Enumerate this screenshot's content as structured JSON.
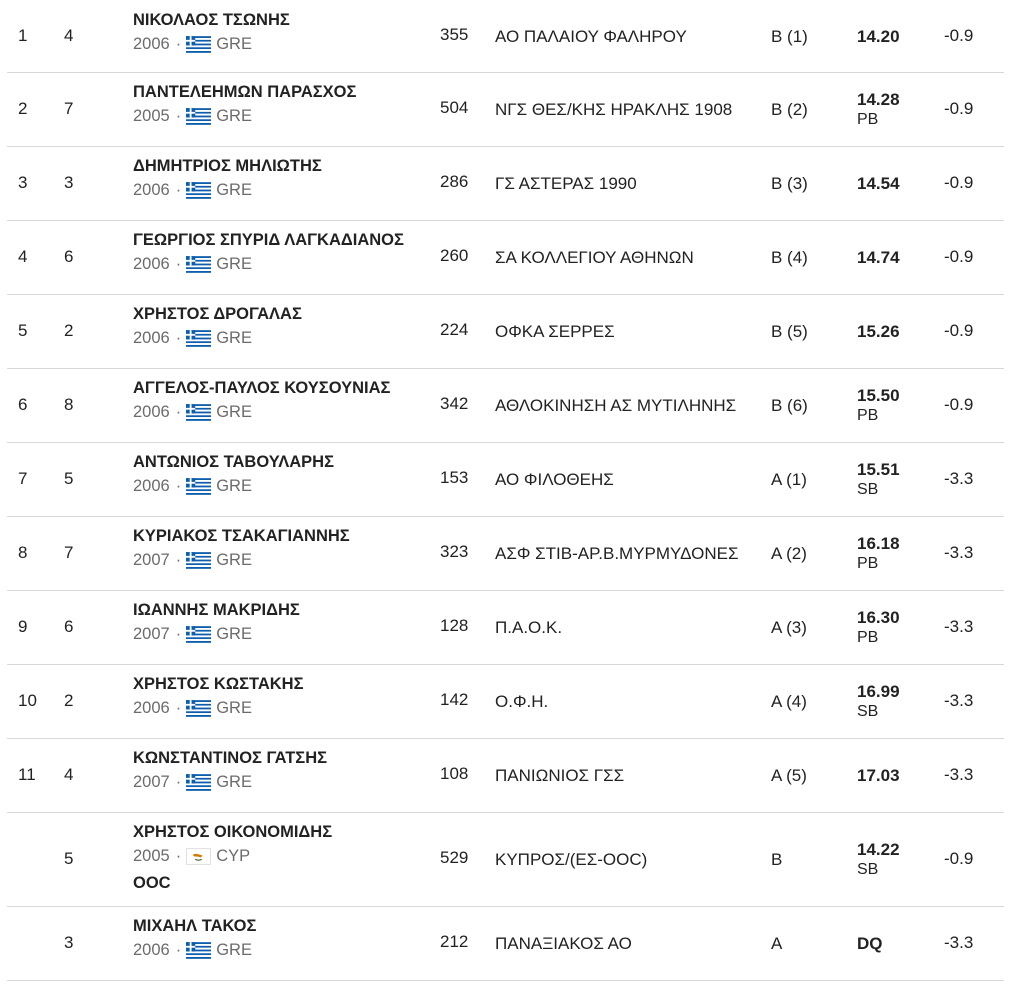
{
  "results": [
    {
      "rank": "1",
      "lane": "4",
      "name": "ΝΙΚΟΛΑΟΣ ΤΣΩΝΗΣ",
      "year": "2006",
      "country": "GRE",
      "flag": "greece-flag-icon",
      "bib": "355",
      "club": "ΑΟ ΠΑΛΑΙΟΥ ΦΑΛΗΡΟΥ",
      "heat": "Β (1)",
      "perf": "14.20",
      "record": "",
      "wind": "-0.9",
      "note": ""
    },
    {
      "rank": "2",
      "lane": "7",
      "name": "ΠΑΝΤΕΛΕΗΜΩΝ ΠΑΡΑΣΧΟΣ",
      "year": "2005",
      "country": "GRE",
      "flag": "greece-flag-icon",
      "bib": "504",
      "club": "ΝΓΣ ΘΕΣ/ΚΗΣ ΗΡΑΚΛΗΣ 1908",
      "heat": "Β (2)",
      "perf": "14.28",
      "record": "PB",
      "wind": "-0.9",
      "note": ""
    },
    {
      "rank": "3",
      "lane": "3",
      "name": "ΔΗΜΗΤΡΙΟΣ ΜΗΛΙΩΤΗΣ",
      "year": "2006",
      "country": "GRE",
      "flag": "greece-flag-icon",
      "bib": "286",
      "club": "ΓΣ ΑΣΤΕΡΑΣ 1990",
      "heat": "Β (3)",
      "perf": "14.54",
      "record": "",
      "wind": "-0.9",
      "note": ""
    },
    {
      "rank": "4",
      "lane": "6",
      "name": "ΓΕΩΡΓΙΟΣ ΣΠΥΡΙΔ ΛΑΓΚΑΔΙΑΝΟΣ",
      "year": "2006",
      "country": "GRE",
      "flag": "greece-flag-icon",
      "bib": "260",
      "club": "ΣΑ ΚΟΛΛΕΓΙΟΥ ΑΘΗΝΩΝ",
      "heat": "Β (4)",
      "perf": "14.74",
      "record": "",
      "wind": "-0.9",
      "note": ""
    },
    {
      "rank": "5",
      "lane": "2",
      "name": "ΧΡΗΣΤΟΣ ΔΡΟΓΑΛΑΣ",
      "year": "2006",
      "country": "GRE",
      "flag": "greece-flag-icon",
      "bib": "224",
      "club": "ΟΦΚΑ ΣΕΡΡΕΣ",
      "heat": "Β (5)",
      "perf": "15.26",
      "record": "",
      "wind": "-0.9",
      "note": ""
    },
    {
      "rank": "6",
      "lane": "8",
      "name": "ΑΓΓΕΛΟΣ-ΠΑΥΛΟΣ ΚΟΥΣΟΥΝΙΑΣ",
      "year": "2006",
      "country": "GRE",
      "flag": "greece-flag-icon",
      "bib": "342",
      "club": "ΑΘΛΟΚΙΝΗΣΗ ΑΣ ΜΥΤΙΛΗΝΗΣ",
      "heat": "Β (6)",
      "perf": "15.50",
      "record": "PB",
      "wind": "-0.9",
      "note": ""
    },
    {
      "rank": "7",
      "lane": "5",
      "name": "ΑΝΤΩΝΙΟΣ ΤΑΒΟΥΛΑΡΗΣ",
      "year": "2006",
      "country": "GRE",
      "flag": "greece-flag-icon",
      "bib": "153",
      "club": "ΑΟ ΦΙΛΟΘΕΗΣ",
      "heat": "Α (1)",
      "perf": "15.51",
      "record": "SB",
      "wind": "-3.3",
      "note": ""
    },
    {
      "rank": "8",
      "lane": "7",
      "name": "ΚΥΡΙΑΚΟΣ ΤΣΑΚΑΓΙΑΝΝΗΣ",
      "year": "2007",
      "country": "GRE",
      "flag": "greece-flag-icon",
      "bib": "323",
      "club": "ΑΣΦ ΣΤΙΒ-ΑΡ.Β.ΜΥΡΜΥΔΟΝΕΣ",
      "heat": "Α (2)",
      "perf": "16.18",
      "record": "PB",
      "wind": "-3.3",
      "note": ""
    },
    {
      "rank": "9",
      "lane": "6",
      "name": "ΙΩΑΝΝΗΣ ΜΑΚΡΙΔΗΣ",
      "year": "2007",
      "country": "GRE",
      "flag": "greece-flag-icon",
      "bib": "128",
      "club": "Π.Α.Ο.Κ.",
      "heat": "Α (3)",
      "perf": "16.30",
      "record": "PB",
      "wind": "-3.3",
      "note": ""
    },
    {
      "rank": "10",
      "lane": "2",
      "name": "ΧΡΗΣΤΟΣ ΚΩΣΤΑΚΗΣ",
      "year": "2006",
      "country": "GRE",
      "flag": "greece-flag-icon",
      "bib": "142",
      "club": "Ο.Φ.Η.",
      "heat": "Α (4)",
      "perf": "16.99",
      "record": "SB",
      "wind": "-3.3",
      "note": ""
    },
    {
      "rank": "11",
      "lane": "4",
      "name": "ΚΩΝΣΤΑΝΤΙΝΟΣ ΓΑΤΣΗΣ",
      "year": "2007",
      "country": "GRE",
      "flag": "greece-flag-icon",
      "bib": "108",
      "club": "ΠΑΝΙΩΝΙΟΣ ΓΣΣ",
      "heat": "Α (5)",
      "perf": "17.03",
      "record": "",
      "wind": "-3.3",
      "note": ""
    },
    {
      "rank": "",
      "lane": "5",
      "name": "ΧΡΗΣΤΟΣ ΟΙΚΟΝΟΜΙΔΗΣ",
      "year": "2005",
      "country": "CYP",
      "flag": "cyprus-flag-icon",
      "bib": "529",
      "club": "ΚΥΠΡΟΣ/(ΕΣ-ΟΟC)",
      "heat": "Β",
      "perf": "14.22",
      "record": "SB",
      "wind": "-0.9",
      "note": "OOC"
    },
    {
      "rank": "",
      "lane": "3",
      "name": "ΜΙΧΑΗΛ ΤΑΚΟΣ",
      "year": "2006",
      "country": "GRE",
      "flag": "greece-flag-icon",
      "bib": "212",
      "club": "ΠΑΝΑΞΙΑΚΟΣ ΑΟ",
      "heat": "Α",
      "perf": "DQ",
      "record": "",
      "wind": "-3.3",
      "note": ""
    }
  ],
  "separator": "·",
  "colors": {
    "text": "#222222",
    "muted": "#6b6b6b",
    "divider": "#d8d8d8",
    "greece_blue": "#0d5eaf",
    "cyprus_copper": "#d57800"
  }
}
